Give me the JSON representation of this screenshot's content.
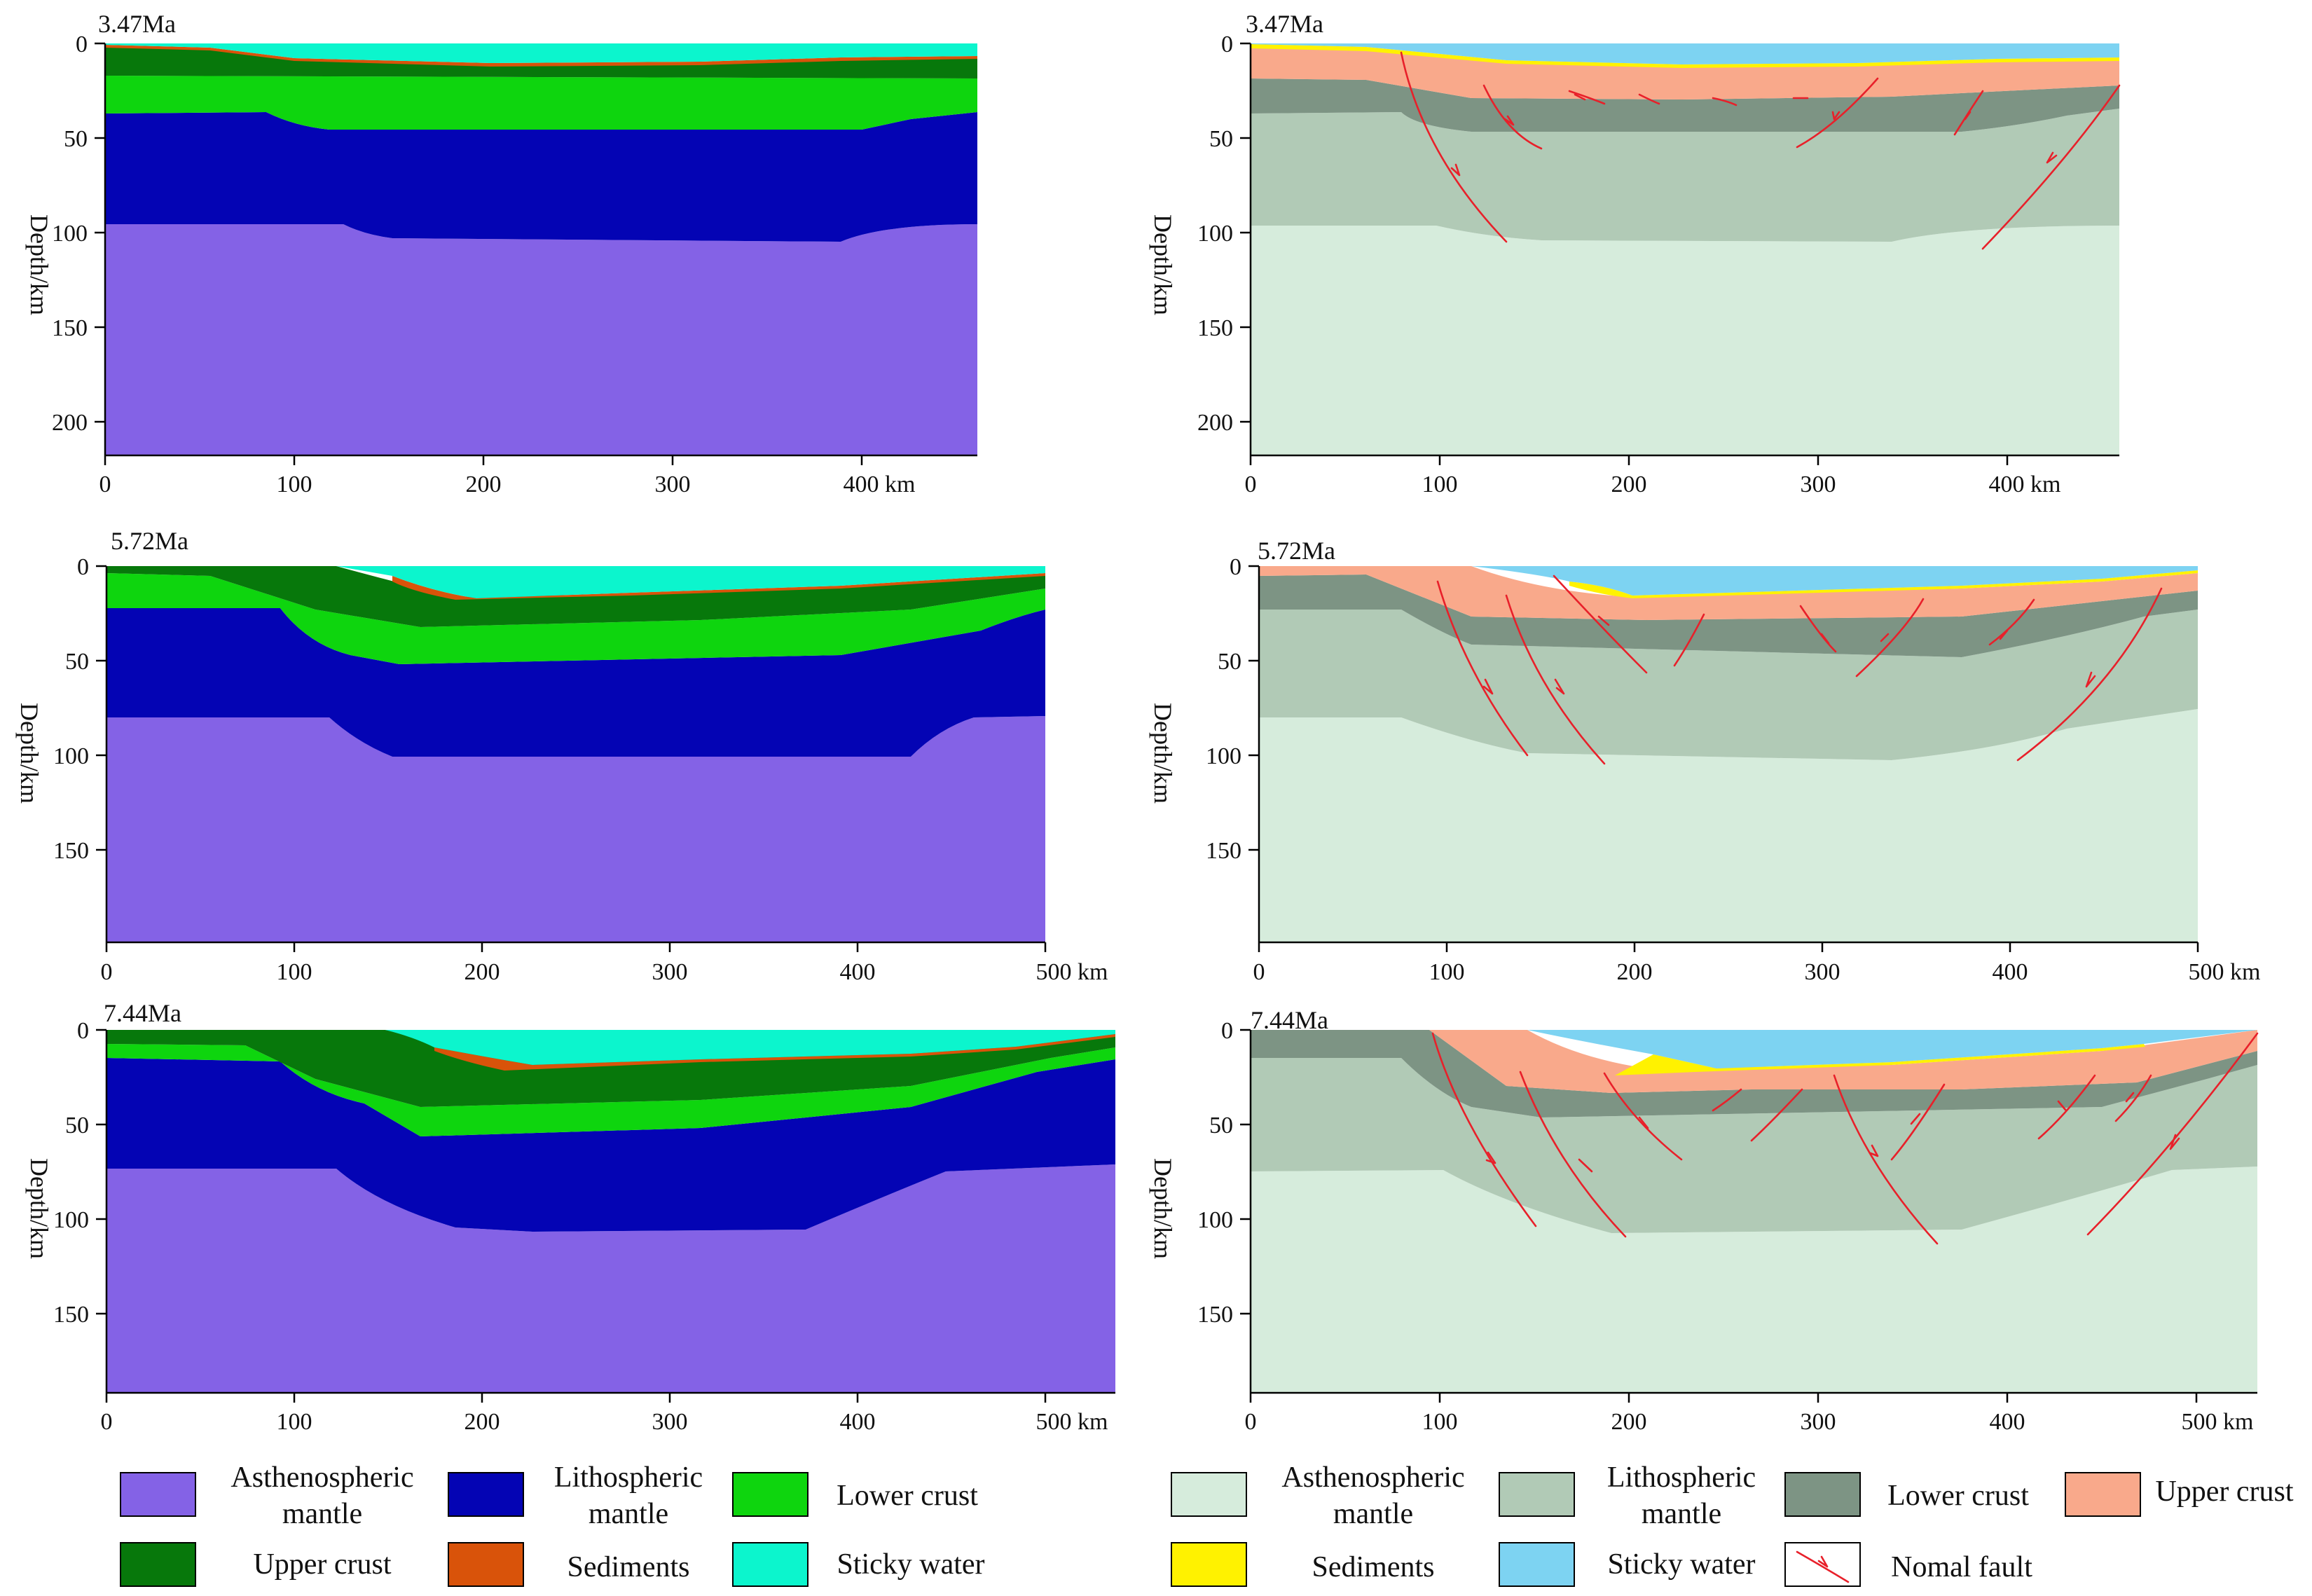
{
  "figure": {
    "panels": [
      {
        "id": "sim-a",
        "side": "model",
        "title": "3.47Ma",
        "ylabel": "Depth/km",
        "xticks": [
          "0",
          "100",
          "200",
          "300",
          "400 km"
        ],
        "yticks": [
          "0",
          "50",
          "100",
          "150",
          "200"
        ],
        "xmax_km": 460,
        "ymax_km": 215
      },
      {
        "id": "interp-a",
        "side": "interpretation",
        "title": "3.47Ma",
        "ylabel": "Depth/km",
        "xticks": [
          "0",
          "100",
          "200",
          "300",
          "400 km"
        ],
        "yticks": [
          "0",
          "50",
          "100",
          "150",
          "200"
        ],
        "xmax_km": 460,
        "ymax_km": 215
      },
      {
        "id": "sim-b",
        "side": "model",
        "title": "5.72Ma",
        "ylabel": "Depth/km",
        "xticks": [
          "0",
          "100",
          "200",
          "300",
          "400",
          "500 km"
        ],
        "yticks": [
          "0",
          "50",
          "100",
          "150"
        ],
        "xmax_km": 500,
        "ymax_km": 200
      },
      {
        "id": "interp-b",
        "side": "interpretation",
        "title": "5.72Ma",
        "ylabel": "Depth/km",
        "xticks": [
          "0",
          "100",
          "200",
          "300",
          "400",
          "500 km"
        ],
        "yticks": [
          "0",
          "50",
          "100",
          "150"
        ],
        "xmax_km": 500,
        "ymax_km": 200
      },
      {
        "id": "sim-c",
        "side": "model",
        "title": "7.44Ma",
        "ylabel": "Depth/km",
        "xticks": [
          "0",
          "100",
          "200",
          "300",
          "400",
          "500 km"
        ],
        "yticks": [
          "0",
          "50",
          "100",
          "150"
        ],
        "xmax_km": 535,
        "ymax_km": 190
      },
      {
        "id": "interp-c",
        "side": "interpretation",
        "title": "7.44Ma",
        "ylabel": "Depth/km",
        "xticks": [
          "0",
          "100",
          "200",
          "300",
          "400",
          "500 km"
        ],
        "yticks": [
          "0",
          "50",
          "100",
          "150"
        ],
        "xmax_km": 535,
        "ymax_km": 190
      }
    ]
  },
  "legend_model": [
    {
      "label1": "Asthenospheric",
      "label2": "mantle",
      "color": "#8462e6"
    },
    {
      "label1": "Lithospheric",
      "label2": "mantle",
      "color": "#0404b4"
    },
    {
      "label1": "Lower crust",
      "label2": "",
      "color": "#0ed50e"
    },
    {
      "label1": "Upper crust",
      "label2": "",
      "color": "#07780b"
    },
    {
      "label1": "Sediments",
      "label2": "",
      "color": "#d9530a"
    },
    {
      "label1": "Sticky water",
      "label2": "",
      "color": "#0cf5cd"
    }
  ],
  "legend_interp": [
    {
      "label1": "Asthenospheric",
      "label2": "mantle",
      "color": "#d6ecdc"
    },
    {
      "label1": "Lithospheric",
      "label2": "mantle",
      "color": "#b1cab6"
    },
    {
      "label1": "Lower crust",
      "label2": "",
      "color": "#7d9484"
    },
    {
      "label1": "Upper crust",
      "label2": "",
      "color": "#f9a98b"
    },
    {
      "label1": "Sediments",
      "label2": "",
      "color": "#fff200"
    },
    {
      "label1": "Sticky water",
      "label2": "",
      "color": "#7dd3f2"
    },
    {
      "label1": "Nomal fault",
      "label2": "",
      "color": "#e8202a"
    }
  ]
}
